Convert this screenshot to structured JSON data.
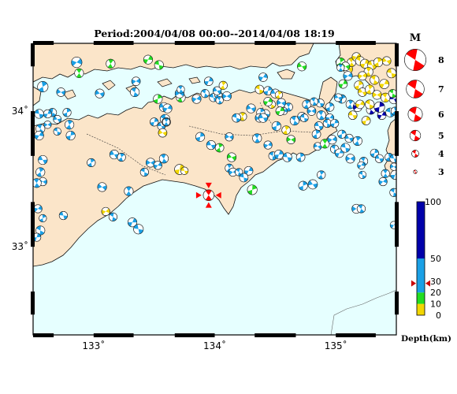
{
  "title": "Period:2004/04/08 00:00--2014/04/08 18:19",
  "map": {
    "lon_range": [
      132.5,
      135.5
    ],
    "lat_range": [
      32.35,
      34.5
    ],
    "x_ticks": [
      133,
      134,
      135
    ],
    "x_tick_labels": [
      "133˚",
      "134˚",
      "135˚"
    ],
    "y_ticks": [
      33,
      34
    ],
    "y_tick_labels": [
      "33˚",
      "34˚"
    ],
    "colors": {
      "sea": "#e6ffff",
      "land": "#fbe5c9",
      "coast": "#111111",
      "frame": "#000000"
    }
  },
  "target_event": {
    "lon": 133.95,
    "lat": 33.38,
    "mag": 5.2,
    "color": "#ff0000",
    "symbol": "red-beachball-with-arrows"
  },
  "magnitude_legend": {
    "title": "M",
    "items": [
      {
        "label": "8",
        "mag": 8
      },
      {
        "label": "7",
        "mag": 7
      },
      {
        "label": "6",
        "mag": 6
      },
      {
        "label": "5",
        "mag": 5
      },
      {
        "label": "4",
        "mag": 4
      },
      {
        "label": "3",
        "mag": 3
      }
    ]
  },
  "depth_scale": {
    "title": "Depth(km)",
    "max": 100,
    "ticks": [
      0,
      10,
      20,
      30,
      50,
      100
    ],
    "tick_labels": [
      "0",
      "10",
      "20",
      "30",
      "50",
      "100"
    ],
    "bands": [
      {
        "from": 0,
        "to": 10,
        "color": "#f2d600"
      },
      {
        "from": 10,
        "to": 20,
        "color": "#22dd22"
      },
      {
        "from": 20,
        "to": 50,
        "color": "#1aa0e6"
      },
      {
        "from": 50,
        "to": 100,
        "color": "#0000aa"
      }
    ],
    "marker_depth": 28,
    "marker_color": "#cc0000"
  },
  "chart_data": {
    "type": "scatter",
    "title": "Period:2004/04/08 00:00--2014/04/08 18:19",
    "xlabel": "",
    "ylabel": "",
    "xlim": [
      132.5,
      135.5
    ],
    "ylim": [
      32.35,
      34.5
    ],
    "fields": [
      "lon",
      "lat",
      "mag",
      "depth_class"
    ],
    "points": [
      [
        132.58,
        34.18,
        4.8,
        "s"
      ],
      [
        132.73,
        34.14,
        4.3,
        "m"
      ],
      [
        132.88,
        34.28,
        4.4,
        "g"
      ],
      [
        132.86,
        34.36,
        4.8,
        "m"
      ],
      [
        132.66,
        33.99,
        4.2,
        "m"
      ],
      [
        132.62,
        33.98,
        4.2,
        "m"
      ],
      [
        132.55,
        33.98,
        4.4,
        "m"
      ],
      [
        132.78,
        33.99,
        4.2,
        "m"
      ],
      [
        132.7,
        33.94,
        4.1,
        "m"
      ],
      [
        132.8,
        33.9,
        4.4,
        "m"
      ],
      [
        132.62,
        33.9,
        4.0,
        "m"
      ],
      [
        132.56,
        33.87,
        4.4,
        "m"
      ],
      [
        132.55,
        33.82,
        4.4,
        "m"
      ],
      [
        132.7,
        33.85,
        4.0,
        "m"
      ],
      [
        132.81,
        33.82,
        4.4,
        "m"
      ],
      [
        132.58,
        33.64,
        4.4,
        "m"
      ],
      [
        132.56,
        33.55,
        4.4,
        "m"
      ],
      [
        132.58,
        33.48,
        4.2,
        "m"
      ],
      [
        132.53,
        33.47,
        4.4,
        "m"
      ],
      [
        132.54,
        33.28,
        4.2,
        "m"
      ],
      [
        132.56,
        33.12,
        4.4,
        "m"
      ],
      [
        132.53,
        33.07,
        4.2,
        "m"
      ],
      [
        132.75,
        33.23,
        4.2,
        "m"
      ],
      [
        132.58,
        33.21,
        4.0,
        "m"
      ],
      [
        133.05,
        34.13,
        4.4,
        "m"
      ],
      [
        133.14,
        34.35,
        4.4,
        "g"
      ],
      [
        133.35,
        34.22,
        4.3,
        "m"
      ],
      [
        133.34,
        34.14,
        4.4,
        "m"
      ],
      [
        133.45,
        34.38,
        4.4,
        "g"
      ],
      [
        133.54,
        34.34,
        4.4,
        "g"
      ],
      [
        133.53,
        34.09,
        4.4,
        "g"
      ],
      [
        133.58,
        34.03,
        4.4,
        "m"
      ],
      [
        133.72,
        34.1,
        4.4,
        "g"
      ],
      [
        133.71,
        34.13,
        4.4,
        "m"
      ],
      [
        133.72,
        34.16,
        4.0,
        "m"
      ],
      [
        133.61,
        34.02,
        4.4,
        "m"
      ],
      [
        133.59,
        33.94,
        4.6,
        "s"
      ],
      [
        133.5,
        33.92,
        4.2,
        "m"
      ],
      [
        133.56,
        33.89,
        4.1,
        "m"
      ],
      [
        133.6,
        33.92,
        4.3,
        "m"
      ],
      [
        133.57,
        33.84,
        4.3,
        "y"
      ],
      [
        133.6,
        33.92,
        4.0,
        "m"
      ],
      [
        133.85,
        34.09,
        4.4,
        "m"
      ],
      [
        133.92,
        34.13,
        4.2,
        "m"
      ],
      [
        133.95,
        34.22,
        4.3,
        "m"
      ],
      [
        133.99,
        34.1,
        4.2,
        "m"
      ],
      [
        134.03,
        34.12,
        4.0,
        "m"
      ],
      [
        134.02,
        34.15,
        4.2,
        "m"
      ],
      [
        134.07,
        34.19,
        4.2,
        "y"
      ],
      [
        134.1,
        34.11,
        4.4,
        "m"
      ],
      [
        134.04,
        34.08,
        4.0,
        "m"
      ],
      [
        134.4,
        34.25,
        4.3,
        "m"
      ],
      [
        134.37,
        34.16,
        4.3,
        "y"
      ],
      [
        134.44,
        34.15,
        4.3,
        "m"
      ],
      [
        134.5,
        34.13,
        4.4,
        "m"
      ],
      [
        134.53,
        34.12,
        4.0,
        "y"
      ],
      [
        134.55,
        34.06,
        4.4,
        "m"
      ],
      [
        134.61,
        34.03,
        4.2,
        "m"
      ],
      [
        134.57,
        34.0,
        4.0,
        "m"
      ],
      [
        134.47,
        34.05,
        4.1,
        "y"
      ],
      [
        134.54,
        34.0,
        4.3,
        "g"
      ],
      [
        134.42,
        33.98,
        4.3,
        "m"
      ],
      [
        134.38,
        33.99,
        4.2,
        "m"
      ],
      [
        134.3,
        34.02,
        4.4,
        "m"
      ],
      [
        134.23,
        33.96,
        4.2,
        "y"
      ],
      [
        134.37,
        33.95,
        4.3,
        "m"
      ],
      [
        134.66,
        33.93,
        4.4,
        "m"
      ],
      [
        134.72,
        33.96,
        4.3,
        "m"
      ],
      [
        134.74,
        33.95,
        4.1,
        "m"
      ],
      [
        134.51,
        33.89,
        4.4,
        "m"
      ],
      [
        134.4,
        33.95,
        4.4,
        "m"
      ],
      [
        134.59,
        33.86,
        4.3,
        "y"
      ],
      [
        134.63,
        33.79,
        4.3,
        "g"
      ],
      [
        134.88,
        33.97,
        4.4,
        "m"
      ],
      [
        134.95,
        33.95,
        4.2,
        "m"
      ],
      [
        134.93,
        33.91,
        4.2,
        "m"
      ],
      [
        134.99,
        33.91,
        4.2,
        "m"
      ],
      [
        134.86,
        33.89,
        4.3,
        "m"
      ],
      [
        134.84,
        33.83,
        4.3,
        "m"
      ],
      [
        134.85,
        33.74,
        4.1,
        "m"
      ],
      [
        134.91,
        33.76,
        4.4,
        "g"
      ],
      [
        134.97,
        33.79,
        4.4,
        "m"
      ],
      [
        134.99,
        33.72,
        4.2,
        "m"
      ],
      [
        135.03,
        33.69,
        4.3,
        "m"
      ],
      [
        135.08,
        33.73,
        4.4,
        "m"
      ],
      [
        135.05,
        33.83,
        4.2,
        "m"
      ],
      [
        135.11,
        33.8,
        4.2,
        "m"
      ],
      [
        135.18,
        33.78,
        4.4,
        "m"
      ],
      [
        135.12,
        33.65,
        4.4,
        "m"
      ],
      [
        135.23,
        33.63,
        4.2,
        "m"
      ],
      [
        135.21,
        33.6,
        4.0,
        "m"
      ],
      [
        135.22,
        33.53,
        4.0,
        "m"
      ],
      [
        135.32,
        33.69,
        4.2,
        "m"
      ],
      [
        135.36,
        33.65,
        4.2,
        "m"
      ],
      [
        135.44,
        33.66,
        4.2,
        "m"
      ],
      [
        135.48,
        33.59,
        4.0,
        "m"
      ],
      [
        135.41,
        33.54,
        4.2,
        "m"
      ],
      [
        135.39,
        33.48,
        4.2,
        "m"
      ],
      [
        135.48,
        33.4,
        4.2,
        "m"
      ],
      [
        135.49,
        33.53,
        4.4,
        "m"
      ],
      [
        135.48,
        33.65,
        4.2,
        "m"
      ],
      [
        135.05,
        34.09,
        4.3,
        "m"
      ],
      [
        135.02,
        34.1,
        4.1,
        "m"
      ],
      [
        135.12,
        34.05,
        4.3,
        "s"
      ],
      [
        135.18,
        34.03,
        4.4,
        "b"
      ],
      [
        135.29,
        34.01,
        4.4,
        "b"
      ],
      [
        135.38,
        33.97,
        4.3,
        "b"
      ],
      [
        135.45,
        33.99,
        4.4,
        "m"
      ],
      [
        135.36,
        34.03,
        4.8,
        "b"
      ],
      [
        135.48,
        34.09,
        4.6,
        "b"
      ],
      [
        135.49,
        34.0,
        4.2,
        "m"
      ],
      [
        135.1,
        34.31,
        4.5,
        "y"
      ],
      [
        135.13,
        34.36,
        4.3,
        "y"
      ],
      [
        135.17,
        34.4,
        4.3,
        "y"
      ],
      [
        135.2,
        34.37,
        4.4,
        "y"
      ],
      [
        135.24,
        34.35,
        4.4,
        "y"
      ],
      [
        135.3,
        34.34,
        4.4,
        "y"
      ],
      [
        135.35,
        34.36,
        4.4,
        "y"
      ],
      [
        135.42,
        34.37,
        4.3,
        "y"
      ],
      [
        135.27,
        34.29,
        4.4,
        "y"
      ],
      [
        135.22,
        34.26,
        4.3,
        "y"
      ],
      [
        135.32,
        34.23,
        4.4,
        "y"
      ],
      [
        135.4,
        34.2,
        4.5,
        "y"
      ],
      [
        135.46,
        34.28,
        4.5,
        "y"
      ],
      [
        135.19,
        34.19,
        4.4,
        "y"
      ],
      [
        135.22,
        34.14,
        4.3,
        "y"
      ],
      [
        135.28,
        34.16,
        4.4,
        "y"
      ],
      [
        135.34,
        34.12,
        4.4,
        "y"
      ],
      [
        135.41,
        34.1,
        4.4,
        "y"
      ],
      [
        135.2,
        34.05,
        4.3,
        "y"
      ],
      [
        135.28,
        34.05,
        4.4,
        "y"
      ],
      [
        135.25,
        33.93,
        4.3,
        "y"
      ],
      [
        135.14,
        33.97,
        4.3,
        "y"
      ],
      [
        135.04,
        34.36,
        4.4,
        "g"
      ],
      [
        135.08,
        34.33,
        4.3,
        "g"
      ],
      [
        135.04,
        34.32,
        4.0,
        "m"
      ],
      [
        135.1,
        34.26,
        4.4,
        "m"
      ],
      [
        135.47,
        34.13,
        4.2,
        "g"
      ],
      [
        135.06,
        34.2,
        4.3,
        "g"
      ],
      [
        134.87,
        34.06,
        4.2,
        "m"
      ],
      [
        134.95,
        34.03,
        4.3,
        "m"
      ],
      [
        134.72,
        34.33,
        4.4,
        "g"
      ],
      [
        134.76,
        34.05,
        4.3,
        "m"
      ],
      [
        134.8,
        34.0,
        4.3,
        "m"
      ],
      [
        134.82,
        34.07,
        4.1,
        "m"
      ],
      [
        134.44,
        34.07,
        4.3,
        "g"
      ],
      [
        134.18,
        33.95,
        4.3,
        "m"
      ],
      [
        133.88,
        33.81,
        4.4,
        "m"
      ],
      [
        133.97,
        33.75,
        4.4,
        "m"
      ],
      [
        134.04,
        33.73,
        4.3,
        "g"
      ],
      [
        134.12,
        33.81,
        4.2,
        "m"
      ],
      [
        134.35,
        33.8,
        4.4,
        "m"
      ],
      [
        134.44,
        33.75,
        4.2,
        "m"
      ],
      [
        134.48,
        33.67,
        4.2,
        "m"
      ],
      [
        134.53,
        33.68,
        4.4,
        "m"
      ],
      [
        134.6,
        33.66,
        4.4,
        "m"
      ],
      [
        134.71,
        33.66,
        4.3,
        "m"
      ],
      [
        134.14,
        33.66,
        4.4,
        "g"
      ],
      [
        134.12,
        33.58,
        4.2,
        "m"
      ],
      [
        134.15,
        33.55,
        4.2,
        "m"
      ],
      [
        134.2,
        33.55,
        4.0,
        "m"
      ],
      [
        134.28,
        33.56,
        4.3,
        "m"
      ],
      [
        134.24,
        33.51,
        4.3,
        "m"
      ],
      [
        134.31,
        33.42,
        4.6,
        "g"
      ],
      [
        133.17,
        33.68,
        4.4,
        "m"
      ],
      [
        133.23,
        33.66,
        4.2,
        "m"
      ],
      [
        133.47,
        33.62,
        4.4,
        "m"
      ],
      [
        133.58,
        33.65,
        4.4,
        "m"
      ],
      [
        133.53,
        33.6,
        4.2,
        "m"
      ],
      [
        133.42,
        33.55,
        4.2,
        "m"
      ],
      [
        133.71,
        33.57,
        4.7,
        "y"
      ],
      [
        133.75,
        33.56,
        4.0,
        "y"
      ],
      [
        132.98,
        33.62,
        4.2,
        "m"
      ],
      [
        133.07,
        33.44,
        4.4,
        "m"
      ],
      [
        133.29,
        33.41,
        4.4,
        "m"
      ],
      [
        133.1,
        33.26,
        4.2,
        "y"
      ],
      [
        133.16,
        33.22,
        4.2,
        "m"
      ],
      [
        133.32,
        33.18,
        4.4,
        "m"
      ],
      [
        133.37,
        33.13,
        4.6,
        "m"
      ],
      [
        134.73,
        33.45,
        4.4,
        "m"
      ],
      [
        134.81,
        33.46,
        4.5,
        "m"
      ],
      [
        134.88,
        33.53,
        4.2,
        "m"
      ],
      [
        135.17,
        33.28,
        4.4,
        "m"
      ],
      [
        135.21,
        33.28,
        4.2,
        "m"
      ],
      [
        135.48,
        33.16,
        4.0,
        "m"
      ]
    ]
  }
}
